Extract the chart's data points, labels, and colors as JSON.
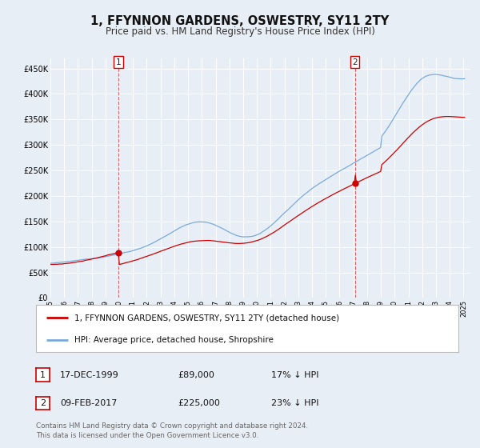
{
  "title": "1, FFYNNON GARDENS, OSWESTRY, SY11 2TY",
  "subtitle": "Price paid vs. HM Land Registry's House Price Index (HPI)",
  "title_fontsize": 10.5,
  "subtitle_fontsize": 8.5,
  "bg_color": "#e8eef5",
  "plot_bg_color": "#e8eef5",
  "ylim": [
    0,
    470000
  ],
  "yticks": [
    0,
    50000,
    100000,
    150000,
    200000,
    250000,
    300000,
    350000,
    400000,
    450000
  ],
  "ytick_labels": [
    "£0",
    "£50K",
    "£100K",
    "£150K",
    "£200K",
    "£250K",
    "£300K",
    "£350K",
    "£400K",
    "£450K"
  ],
  "sale1_date": "17-DEC-1999",
  "sale1_price": 89000,
  "sale1_label": "17% ↓ HPI",
  "sale2_date": "09-FEB-2017",
  "sale2_price": 225000,
  "sale2_label": "23% ↓ HPI",
  "legend_line1": "1, FFYNNON GARDENS, OSWESTRY, SY11 2TY (detached house)",
  "legend_line2": "HPI: Average price, detached house, Shropshire",
  "footer": "Contains HM Land Registry data © Crown copyright and database right 2024.\nThis data is licensed under the Open Government Licence v3.0.",
  "red_color": "#cc0000",
  "blue_color": "#7aaadd",
  "marker_color": "#cc0000",
  "vline_color": "#cc0000",
  "grid_color": "#ffffff",
  "sale1_x": 1999.96,
  "sale2_x": 2017.11,
  "xmin": 1995.0,
  "xmax": 2025.5
}
